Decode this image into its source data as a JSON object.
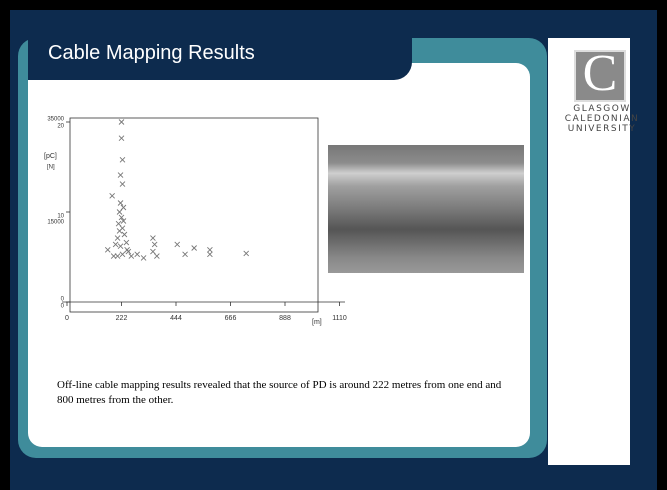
{
  "slide": {
    "title": "Cable Mapping Results",
    "caption": "Off-line cable mapping results revealed that the source of PD is around 222 metres from one end and 800 metres from the other.",
    "logo": {
      "letter": "C",
      "lines": [
        "GLASGOW",
        "CALEDONIAN",
        "UNIVERSITY"
      ]
    }
  },
  "chart_data": {
    "type": "scatter",
    "y_label": "[N]",
    "y2_label": "[pC]",
    "x_label": "[m]",
    "xlim": [
      0,
      1110
    ],
    "xticks": [
      0,
      222,
      444,
      666,
      888,
      1110
    ],
    "ylim": [
      0,
      20
    ],
    "yticks": [
      0,
      10,
      20
    ],
    "y2lim": [
      0,
      35000
    ],
    "y2ticks": [
      0,
      15000,
      35000
    ],
    "color": "#777777",
    "x": [
      222,
      222,
      226,
      218,
      226,
      184,
      218,
      230,
      214,
      222,
      230,
      210,
      226,
      214,
      234,
      206,
      242,
      198,
      218,
      166,
      250,
      226,
      206,
      262,
      286,
      312,
      350,
      357,
      350,
      366,
      449,
      481,
      518,
      582,
      582,
      730,
      190,
      245
    ],
    "values": [
      20,
      18.2,
      15.8,
      14.1,
      13.1,
      11.8,
      11,
      10.5,
      10,
      9.4,
      9,
      8.7,
      8.2,
      7.9,
      7.5,
      7.1,
      6.6,
      6.4,
      6.2,
      5.8,
      5.6,
      5.3,
      5.1,
      5.1,
      5.3,
      4.9,
      7.1,
      6.4,
      5.6,
      5.1,
      6.4,
      5.3,
      6,
      5.8,
      5.3,
      5.4,
      5.1,
      5.8
    ]
  }
}
